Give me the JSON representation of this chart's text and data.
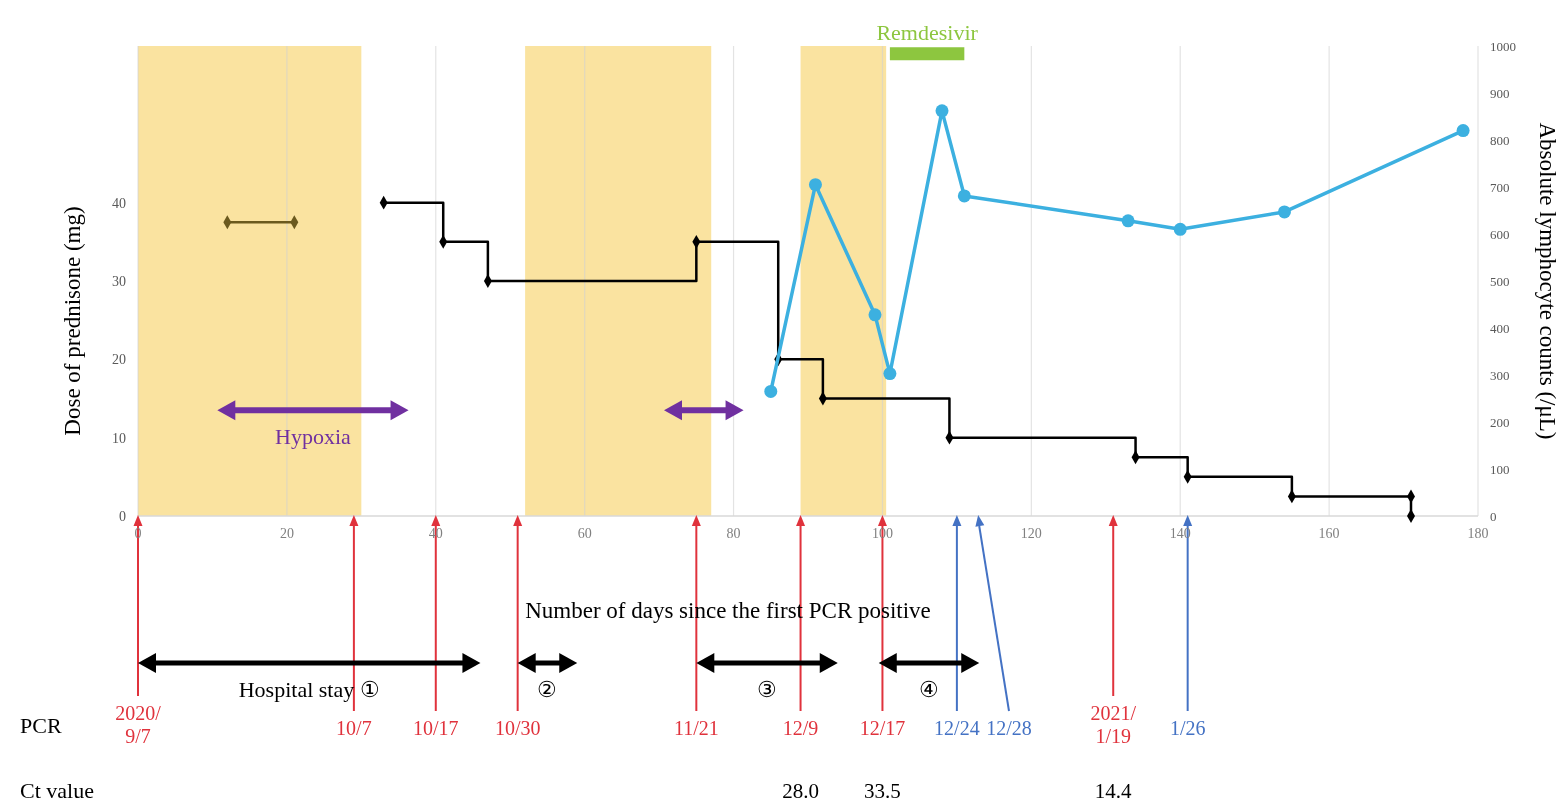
{
  "chart_data": {
    "type": "step",
    "xlabel": "Number of days since the first PCR positive",
    "ylabel": "Dose of prednisone (mg)",
    "y2label": "Absolute lymphocyte counts (/μL)",
    "xlim": [
      0,
      180
    ],
    "xticks": [
      0,
      20,
      40,
      60,
      80,
      100,
      120,
      140,
      160,
      180
    ],
    "ylim": [
      0,
      60
    ],
    "yticks": [
      0,
      10,
      20,
      30,
      40
    ],
    "y2lim": [
      0,
      1000
    ],
    "y2ticks": [
      0,
      100,
      200,
      300,
      400,
      500,
      600,
      700,
      800,
      900,
      1000
    ],
    "grid": "x",
    "series": [
      {
        "type": "line",
        "color": "#6b5a1e",
        "marker": "diamond",
        "x": [
          12,
          21
        ],
        "values": [
          37.5,
          37.5
        ]
      },
      {
        "color": "#000000",
        "marker": "diamond",
        "x": [
          33,
          41,
          47,
          75,
          86,
          92,
          109,
          134,
          141,
          155,
          171,
          171
        ],
        "values": [
          40,
          35,
          30,
          35,
          20,
          15,
          10,
          7.5,
          5,
          2.5,
          2.5,
          0
        ]
      },
      {
        "type": "line",
        "axis": "y2",
        "color": "#3cb0e0",
        "marker": "circle",
        "x": [
          85,
          91,
          99,
          101,
          108,
          111,
          133,
          140,
          154,
          178
        ],
        "values": [
          265,
          705,
          428,
          303,
          862,
          681,
          628,
          610,
          647,
          820
        ]
      },
      {
        "type": "line",
        "name": "Hypoxia",
        "color": "#7030a0",
        "marker": "triangle",
        "x": [
          12,
          35
        ],
        "values": [
          13.5,
          13.5
        ]
      },
      {
        "type": "line",
        "color": "#7030a0",
        "marker": "triangle",
        "x": [
          72,
          80
        ],
        "values": [
          13.5,
          13.5
        ]
      },
      {
        "type": "line",
        "name": "Remdesivir",
        "color": "#8dc63f",
        "marker": "none",
        "x": [
          101,
          111
        ],
        "values": [
          59,
          59
        ]
      }
    ],
    "bands": [
      {
        "axis": "x",
        "from": 0,
        "to": 30,
        "color": "#fae3a0"
      },
      {
        "axis": "x",
        "from": 52,
        "to": 77,
        "color": "#fae3a0"
      },
      {
        "axis": "x",
        "from": 89,
        "to": 100.5,
        "color": "#fae3a0"
      }
    ],
    "annotations": [
      "PCR",
      "Ct value",
      "2020/\n9/7",
      "10/7",
      "10/17",
      "10/30",
      "11/21",
      "12/9",
      "12/17",
      "12/24",
      "12/28",
      "2021/\n1/19",
      "1/26",
      "28.0",
      "33.5",
      "14.4",
      "Hospital stay ①",
      "②",
      "③",
      "④"
    ]
  }
}
